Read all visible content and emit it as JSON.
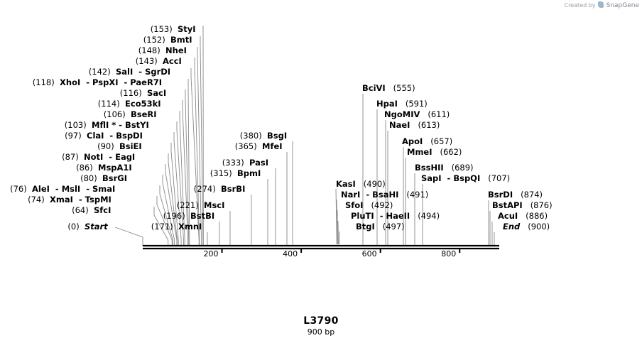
{
  "credit": {
    "prefix": "Created by",
    "brand": "SnapGene"
  },
  "sequence": {
    "name": "L3790",
    "length_label": "900 bp",
    "length_bp": 900
  },
  "axis_ticks": [
    "200",
    "400",
    "600",
    "800"
  ],
  "sites": [
    {
      "name": "StyI",
      "pos": "(153)",
      "bp": 153
    },
    {
      "name": "BmtI",
      "pos": "(152)",
      "bp": 152
    },
    {
      "name": "NheI",
      "pos": "(148)",
      "bp": 148
    },
    {
      "name": "AccI",
      "pos": "(143)",
      "bp": 143
    },
    {
      "name": "SalI  - SgrDI",
      "pos": "(142)",
      "bp": 142
    },
    {
      "name": "XhoI  - PspXI  - PaeR7I",
      "pos": "(118)",
      "bp": 118
    },
    {
      "name": "SacI",
      "pos": "(116)",
      "bp": 116
    },
    {
      "name": "Eco53kI",
      "pos": "(114)",
      "bp": 114
    },
    {
      "name": "BseRI",
      "pos": "(106)",
      "bp": 106
    },
    {
      "name": "MflI * - BstYI",
      "pos": "(103)",
      "bp": 103
    },
    {
      "name": "ClaI  - BspDI",
      "pos": "(97)",
      "bp": 97
    },
    {
      "name": "BsiEI",
      "pos": "(90)",
      "bp": 90
    },
    {
      "name": "NotI  - EagI",
      "pos": "(87)",
      "bp": 87
    },
    {
      "name": "MspA1I",
      "pos": "(86)",
      "bp": 86
    },
    {
      "name": "BsrGI",
      "pos": "(80)",
      "bp": 80
    },
    {
      "name": "AleI  - MslI  - SmaI",
      "pos": "(76)",
      "bp": 76
    },
    {
      "name": "XmaI  - TspMI",
      "pos": "(74)",
      "bp": 74
    },
    {
      "name": "SfcI",
      "pos": "(64)",
      "bp": 64
    },
    {
      "name": "Start",
      "pos": "(0)",
      "bp": 0,
      "italic": true
    },
    {
      "name": "BsgI",
      "pos": "(380)",
      "bp": 380
    },
    {
      "name": "MfeI",
      "pos": "(365)",
      "bp": 365
    },
    {
      "name": "PasI",
      "pos": "(333)",
      "bp": 333
    },
    {
      "name": "BpmI",
      "pos": "(315)",
      "bp": 315
    },
    {
      "name": "BsrBI",
      "pos": "(274)",
      "bp": 274
    },
    {
      "name": "MscI",
      "pos": "(221)",
      "bp": 221
    },
    {
      "name": "BstBI",
      "pos": "(196)",
      "bp": 196
    },
    {
      "name": "XmnI",
      "pos": "(171)",
      "bp": 171
    },
    {
      "name": "BciVI",
      "pos": "(555)",
      "bp": 555
    },
    {
      "name": "HpaI",
      "pos": "(591)",
      "bp": 591
    },
    {
      "name": "NgoMIV",
      "pos": "(611)",
      "bp": 611
    },
    {
      "name": "NaeI",
      "pos": "(613)",
      "bp": 613
    },
    {
      "name": "ApoI",
      "pos": "(657)",
      "bp": 657
    },
    {
      "name": "MmeI",
      "pos": "(662)",
      "bp": 662
    },
    {
      "name": "BssHII",
      "pos": "(689)",
      "bp": 689
    },
    {
      "name": "SapI  - BspQI",
      "pos": "(707)",
      "bp": 707
    },
    {
      "name": "KasI",
      "pos": "(490)",
      "bp": 490
    },
    {
      "name": "NarI  - BsaHI",
      "pos": "(491)",
      "bp": 491
    },
    {
      "name": "SfoI",
      "pos": "(492)",
      "bp": 492
    },
    {
      "name": "PluTI  - HaeII",
      "pos": "(494)",
      "bp": 494
    },
    {
      "name": "BtgI",
      "pos": "(497)",
      "bp": 497
    },
    {
      "name": "BsrDI",
      "pos": "(874)",
      "bp": 874
    },
    {
      "name": "BstAPI",
      "pos": "(876)",
      "bp": 876
    },
    {
      "name": "AcuI",
      "pos": "(886)",
      "bp": 886
    },
    {
      "name": "End",
      "pos": "(900)",
      "bp": 900,
      "italic": true
    }
  ]
}
